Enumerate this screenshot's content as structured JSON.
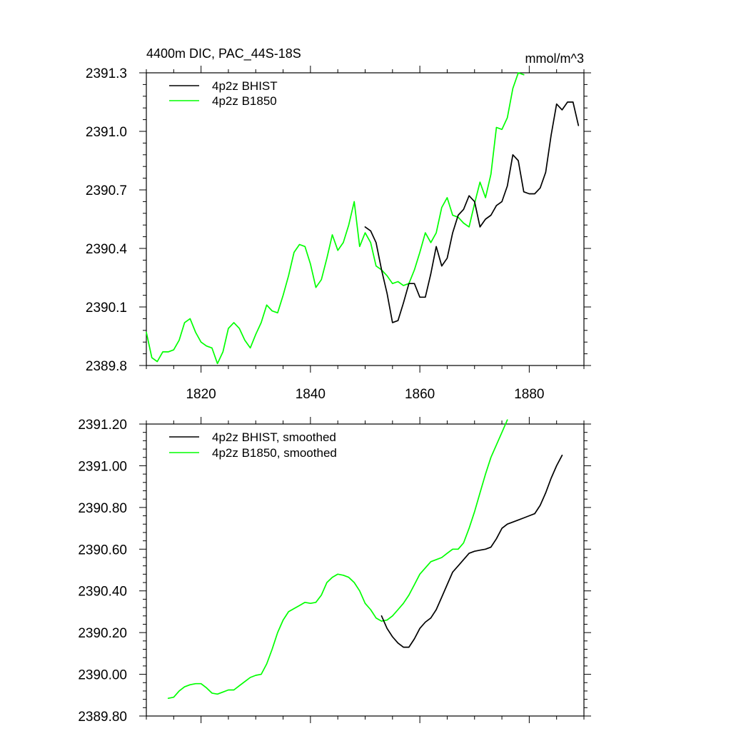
{
  "chart_data": [
    {
      "type": "line",
      "title": "4400m DIC, PAC_44S-18S",
      "units": "mmol/m^3",
      "xlabel": "",
      "ylabel": "",
      "xlim": [
        1810,
        1890
      ],
      "ylim": [
        2389.8,
        2391.3
      ],
      "xticks": [
        1820,
        1840,
        1860,
        1880
      ],
      "xtick_labels": [
        "1820",
        "1840",
        "1860",
        "1880"
      ],
      "yticks": [
        2389.8,
        2390.1,
        2390.4,
        2390.7,
        2391.0,
        2391.3
      ],
      "ytick_labels": [
        "2389.8",
        "2390.1",
        "2390.4",
        "2390.7",
        "2391.0",
        "2391.3"
      ],
      "legend_position": "top-left",
      "series": [
        {
          "name": "4p2z BHIST",
          "color": "#000000",
          "x": [
            1850,
            1851,
            1852,
            1853,
            1854,
            1855,
            1856,
            1857,
            1858,
            1859,
            1860,
            1861,
            1862,
            1863,
            1864,
            1865,
            1866,
            1867,
            1868,
            1869,
            1870,
            1871,
            1872,
            1873,
            1874,
            1875,
            1876,
            1877,
            1878,
            1879,
            1880,
            1881,
            1882,
            1883,
            1884,
            1885,
            1886,
            1887,
            1888,
            1889
          ],
          "values": [
            2390.51,
            2390.49,
            2390.43,
            2390.29,
            2390.17,
            2390.02,
            2390.03,
            2390.12,
            2390.22,
            2390.22,
            2390.15,
            2390.15,
            2390.27,
            2390.41,
            2390.31,
            2390.35,
            2390.48,
            2390.57,
            2390.6,
            2390.67,
            2390.64,
            2390.51,
            2390.55,
            2390.57,
            2390.62,
            2390.64,
            2390.72,
            2390.88,
            2390.85,
            2390.69,
            2390.68,
            2390.68,
            2390.71,
            2390.79,
            2390.98,
            2391.14,
            2391.11,
            2391.15,
            2391.15,
            2391.03
          ]
        },
        {
          "name": "4p2z B1850",
          "color": "#00ff00",
          "x": [
            1810,
            1811,
            1812,
            1813,
            1814,
            1815,
            1816,
            1817,
            1818,
            1819,
            1820,
            1821,
            1822,
            1823,
            1824,
            1825,
            1826,
            1827,
            1828,
            1829,
            1830,
            1831,
            1832,
            1833,
            1834,
            1835,
            1836,
            1837,
            1838,
            1839,
            1840,
            1841,
            1842,
            1843,
            1844,
            1845,
            1846,
            1847,
            1848,
            1849,
            1850,
            1851,
            1852,
            1853,
            1854,
            1855,
            1856,
            1857,
            1858,
            1859,
            1860,
            1861,
            1862,
            1863,
            1864,
            1865,
            1866,
            1867,
            1868,
            1869,
            1870,
            1871,
            1872,
            1873,
            1874,
            1875,
            1876,
            1877,
            1878,
            1879
          ],
          "values": [
            2389.97,
            2389.84,
            2389.82,
            2389.87,
            2389.87,
            2389.88,
            2389.93,
            2390.02,
            2390.04,
            2389.97,
            2389.92,
            2389.9,
            2389.89,
            2389.81,
            2389.87,
            2389.99,
            2390.02,
            2389.99,
            2389.93,
            2389.89,
            2389.96,
            2390.02,
            2390.11,
            2390.08,
            2390.07,
            2390.16,
            2390.26,
            2390.38,
            2390.42,
            2390.41,
            2390.32,
            2390.2,
            2390.24,
            2390.35,
            2390.47,
            2390.39,
            2390.43,
            2390.52,
            2390.64,
            2390.41,
            2390.48,
            2390.43,
            2390.31,
            2390.29,
            2390.26,
            2390.22,
            2390.23,
            2390.21,
            2390.22,
            2390.29,
            2390.38,
            2390.48,
            2390.43,
            2390.48,
            2390.61,
            2390.66,
            2390.57,
            2390.56,
            2390.53,
            2390.51,
            2390.63,
            2390.74,
            2390.66,
            2390.78,
            2391.02,
            2391.01,
            2391.07,
            2391.22,
            2391.3,
            2391.29
          ]
        }
      ]
    },
    {
      "type": "line",
      "title": "",
      "xlabel": "",
      "ylabel": "",
      "xlim": [
        1810,
        1890
      ],
      "ylim": [
        2389.8,
        2391.2
      ],
      "xticks": [
        1820,
        1840,
        1860,
        1880
      ],
      "xtick_labels": [],
      "yticks": [
        2389.8,
        2390.0,
        2390.2,
        2390.4,
        2390.6,
        2390.8,
        2391.0,
        2391.2
      ],
      "ytick_labels": [
        "2389.80",
        "2390.00",
        "2390.20",
        "2390.40",
        "2390.60",
        "2390.80",
        "2391.00",
        "2391.20"
      ],
      "legend_position": "top-left",
      "series": [
        {
          "name": "4p2z BHIST, smoothed",
          "color": "#000000",
          "x": [
            1853,
            1854,
            1855,
            1856,
            1857,
            1858,
            1859,
            1860,
            1861,
            1862,
            1863,
            1864,
            1865,
            1866,
            1867,
            1868,
            1869,
            1870,
            1871,
            1872,
            1873,
            1874,
            1875,
            1876,
            1877,
            1878,
            1879,
            1880,
            1881,
            1882,
            1883,
            1884,
            1885,
            1886
          ],
          "values": [
            2390.28,
            2390.22,
            2390.18,
            2390.15,
            2390.13,
            2390.13,
            2390.17,
            2390.22,
            2390.25,
            2390.27,
            2390.31,
            2390.37,
            2390.43,
            2390.49,
            2390.52,
            2390.55,
            2390.58,
            2390.59,
            2390.595,
            2390.6,
            2390.61,
            2390.65,
            2390.7,
            2390.72,
            2390.73,
            2390.74,
            2390.75,
            2390.76,
            2390.77,
            2390.81,
            2390.87,
            2390.94,
            2391.0,
            2391.05
          ]
        },
        {
          "name": "4p2z B1850, smoothed",
          "color": "#00ff00",
          "x": [
            1814,
            1815,
            1816,
            1817,
            1818,
            1819,
            1820,
            1821,
            1822,
            1823,
            1824,
            1825,
            1826,
            1827,
            1828,
            1829,
            1830,
            1831,
            1832,
            1833,
            1834,
            1835,
            1836,
            1837,
            1838,
            1839,
            1840,
            1841,
            1842,
            1843,
            1844,
            1845,
            1846,
            1847,
            1848,
            1849,
            1850,
            1851,
            1852,
            1853,
            1854,
            1855,
            1856,
            1857,
            1858,
            1859,
            1860,
            1861,
            1862,
            1863,
            1864,
            1865,
            1866,
            1867,
            1868,
            1869,
            1870,
            1871,
            1872,
            1873,
            1874,
            1875,
            1876
          ],
          "values": [
            2389.885,
            2389.89,
            2389.92,
            2389.94,
            2389.95,
            2389.955,
            2389.955,
            2389.935,
            2389.91,
            2389.905,
            2389.915,
            2389.925,
            2389.925,
            2389.945,
            2389.965,
            2389.985,
            2389.995,
            2390.0,
            2390.05,
            2390.12,
            2390.2,
            2390.26,
            2390.3,
            2390.315,
            2390.33,
            2390.345,
            2390.34,
            2390.345,
            2390.38,
            2390.44,
            2390.465,
            2390.48,
            2390.475,
            2390.465,
            2390.44,
            2390.4,
            2390.34,
            2390.31,
            2390.27,
            2390.255,
            2390.26,
            2390.28,
            2390.31,
            2390.34,
            2390.38,
            2390.43,
            2390.48,
            2390.51,
            2390.54,
            2390.55,
            2390.56,
            2390.58,
            2390.6,
            2390.6,
            2390.63,
            2390.7,
            2390.78,
            2390.87,
            2390.96,
            2391.04,
            2391.1,
            2391.16,
            2391.22
          ]
        }
      ]
    }
  ]
}
